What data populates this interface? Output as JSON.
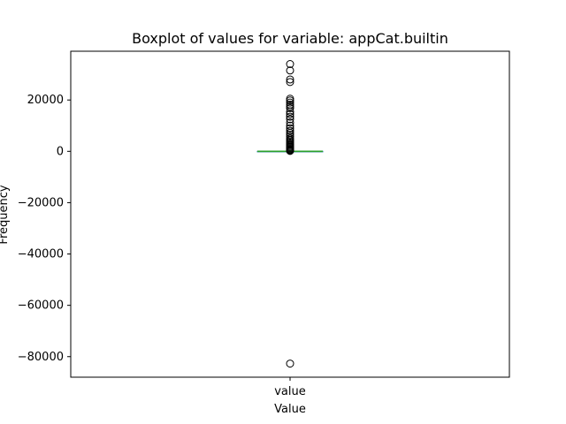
{
  "chart_data": {
    "type": "boxplot",
    "title": "Boxplot of values for variable: appCat.builtin",
    "xlabel": "Value",
    "ylabel": "Frequency",
    "categories": [
      "value"
    ],
    "ylim": [
      -88000,
      39000
    ],
    "yticks": [
      20000,
      0,
      -20000,
      -40000,
      -60000,
      -80000
    ],
    "ytick_labels": [
      "20000",
      "0",
      "−20000",
      "−40000",
      "−60000",
      "−80000"
    ],
    "box": {
      "q1": 1.5,
      "median": 4.0,
      "q3": 9.0,
      "whisker_low": -8.0,
      "whisker_high": 20.0
    },
    "outliers": [
      34000,
      31500,
      28000,
      27000,
      20500,
      19800,
      19000,
      18200,
      17500,
      16800,
      15500,
      14500,
      13500,
      12500,
      11200,
      10000,
      9000,
      8000,
      7200,
      6500,
      5800,
      5000,
      4400,
      3900,
      3400,
      2900,
      2500,
      2100,
      1700,
      1300,
      900,
      600,
      300,
      150,
      -82700
    ],
    "colors": {
      "median": "#2ca02c",
      "box": "#1f77b4",
      "whisker": "#000000",
      "outlier_edge": "#000000"
    },
    "grid": false,
    "legend": "none"
  }
}
